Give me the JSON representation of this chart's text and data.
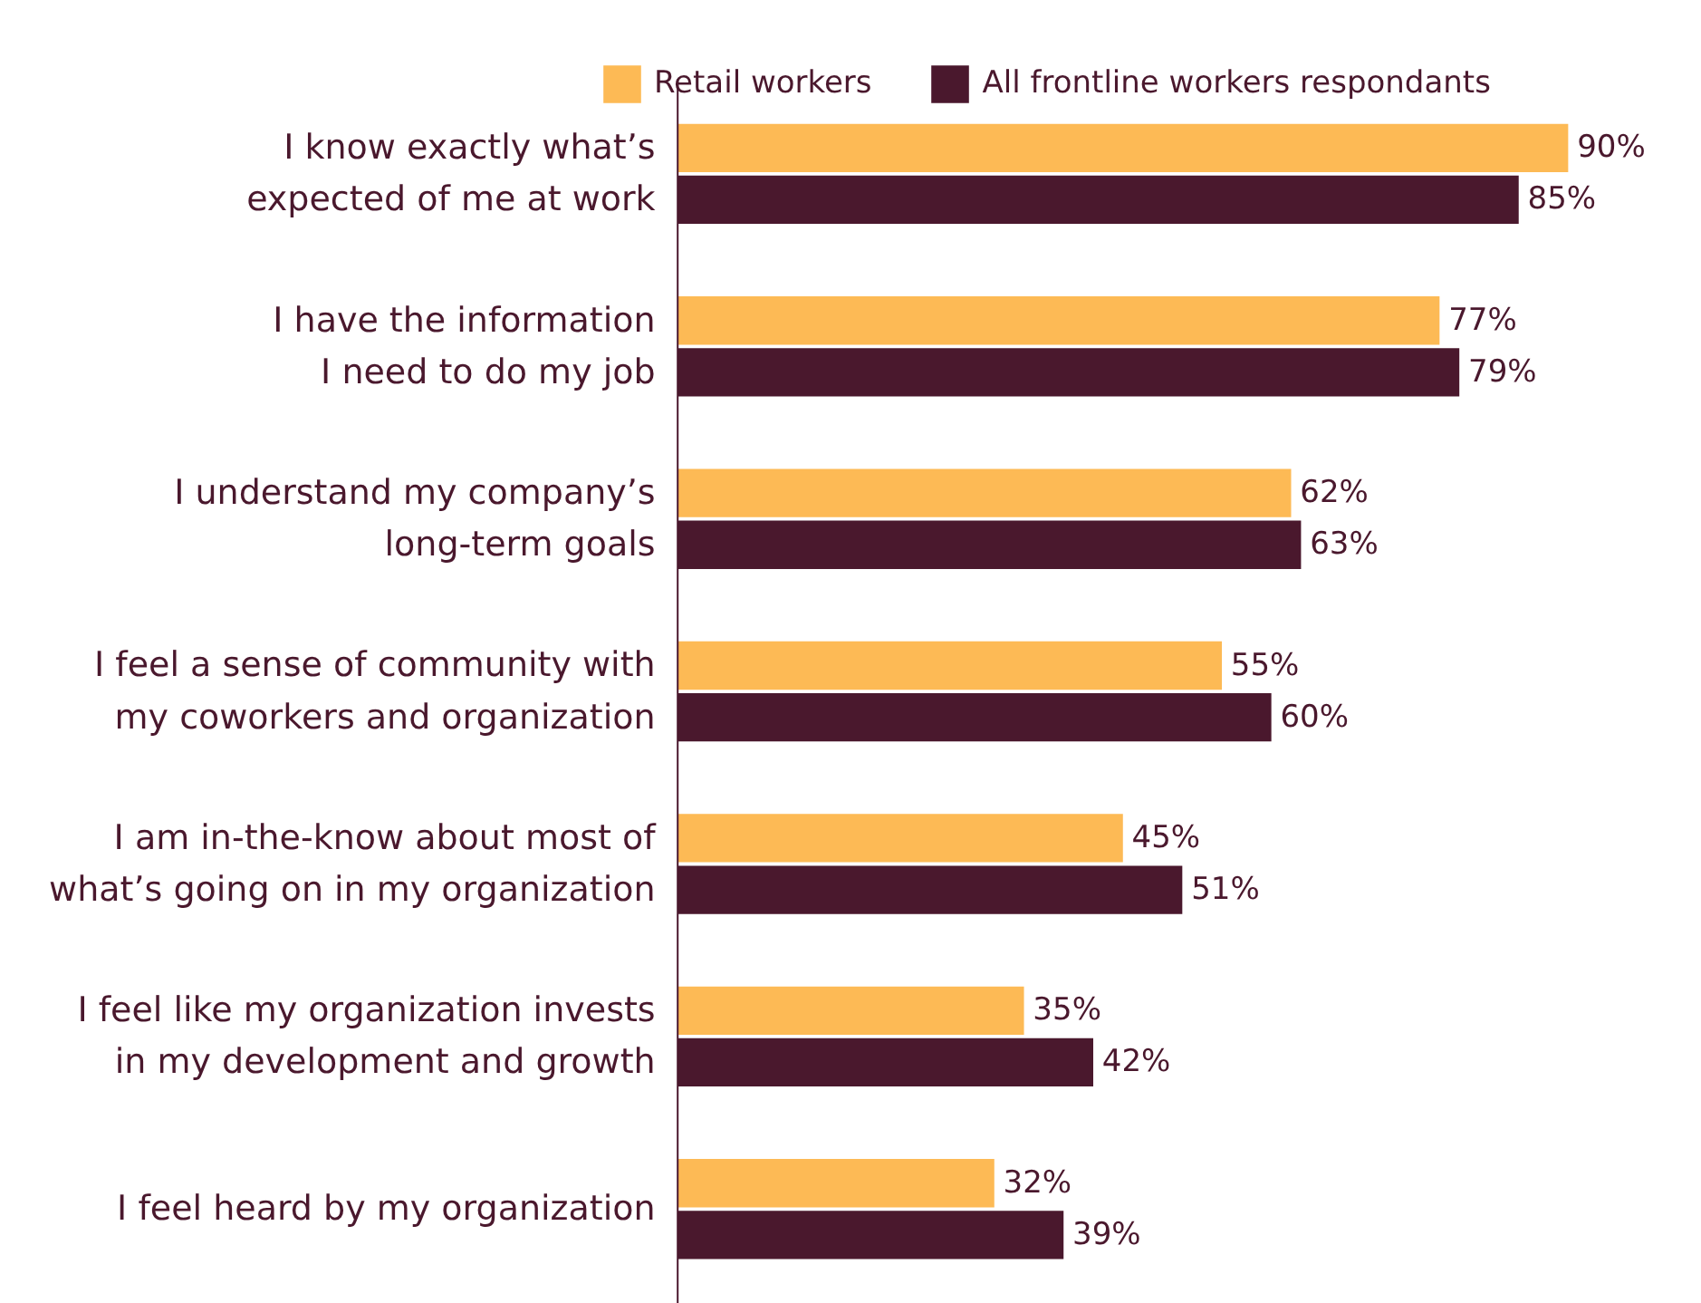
{
  "chart_data": {
    "type": "bar",
    "orientation": "horizontal",
    "legend": "top",
    "grid": false,
    "categories": [
      "I know exactly what’s\nexpected of me at work",
      "I have the information\nI need to do my job",
      "I understand my company’s\nlong-term goals",
      "I feel a sense of community with\nmy coworkers and organization",
      "I am in-the-know about most of\nwhat’s going on in my organization",
      "I feel like my organization invests\nin my development and growth",
      "I feel heard by my organization"
    ],
    "series": [
      {
        "name": "Retail workers",
        "color": "#fdba55",
        "values": [
          90,
          77,
          62,
          55,
          45,
          35,
          32
        ],
        "value_labels": [
          "90%",
          "77%",
          "62%",
          "55%",
          "45%",
          "35%",
          "32%"
        ]
      },
      {
        "name": "All frontline workers respondants",
        "color": "#4a182d",
        "values": [
          85,
          79,
          63,
          60,
          51,
          42,
          39
        ],
        "value_labels": [
          "85%",
          "79%",
          "63%",
          "60%",
          "51%",
          "42%",
          "39%"
        ]
      }
    ]
  }
}
